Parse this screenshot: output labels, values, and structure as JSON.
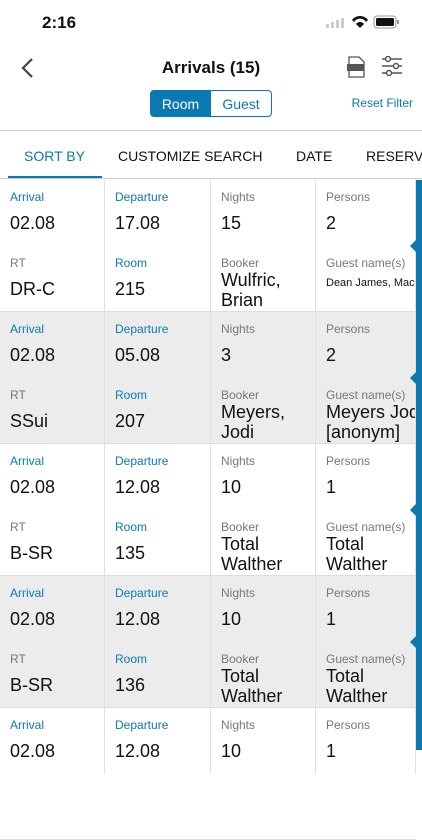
{
  "status_bar": {
    "time": "2:16"
  },
  "nav": {
    "title": "Arrivals (15)",
    "segments": [
      "Room",
      "Guest"
    ],
    "reset": "Reset Filter"
  },
  "tabs": [
    "SORT BY",
    "CUSTOMIZE SEARCH",
    "DATE",
    "RESERVA"
  ],
  "fields": [
    "Arrival",
    "Departure",
    "Nights",
    "Persons",
    "RT",
    "Room",
    "Booker",
    "Guest name(s)"
  ],
  "cards": [
    [
      "02.08",
      "17.08",
      "15",
      "2",
      "DR-C",
      "215",
      "Wulfric, Brian",
      "Dean James, Mackelroy Minnie"
    ],
    [
      "02.08",
      "05.08",
      "3",
      "2",
      "SSui",
      "207",
      "Meyers, Jodi",
      "Meyers Jodi [anonym]"
    ],
    [
      "02.08",
      "12.08",
      "10",
      "1",
      "B-SR",
      "135",
      "Total Walther",
      "Total Walther"
    ],
    [
      "02.08",
      "12.08",
      "10",
      "1",
      "B-SR",
      "136",
      "Total Walther",
      "Total Walther"
    ],
    [
      "02.08",
      "12.08",
      "10",
      "1"
    ]
  ]
}
